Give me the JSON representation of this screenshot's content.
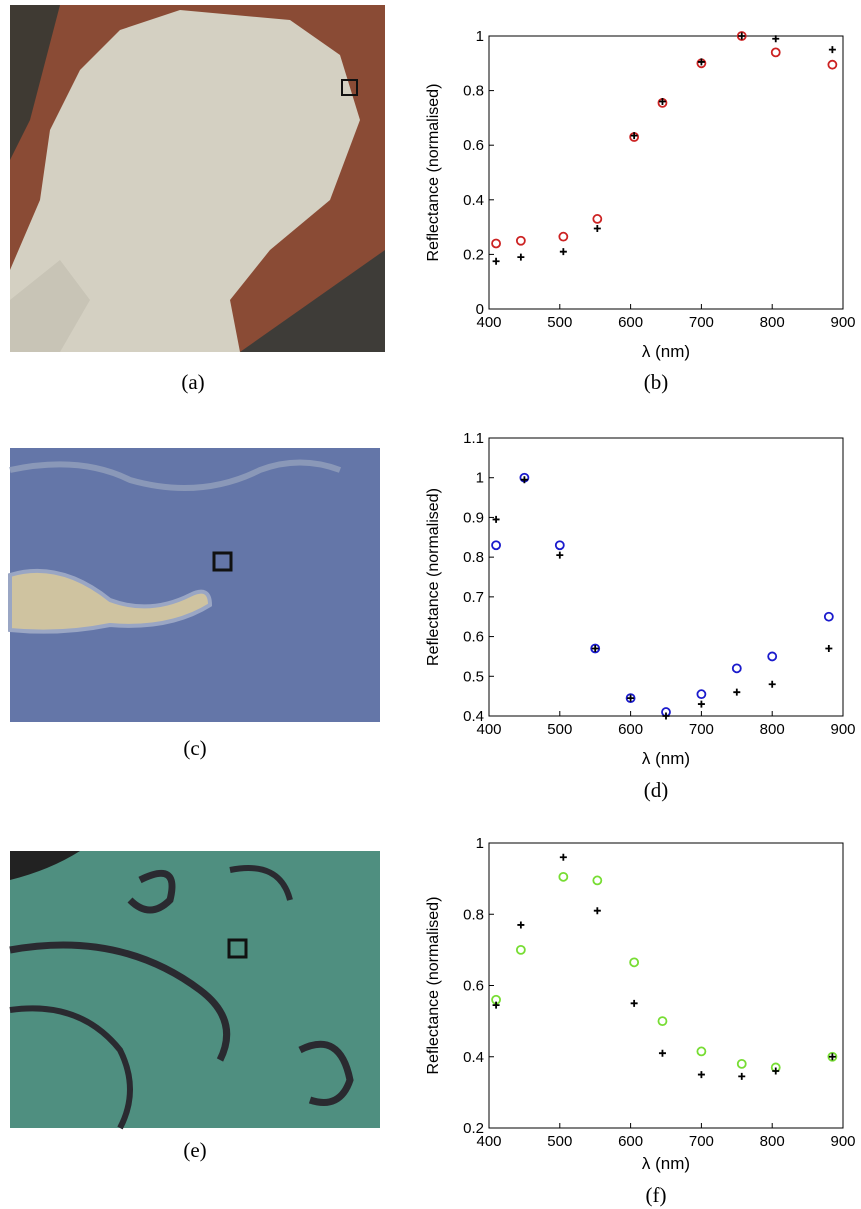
{
  "panels": [
    {
      "label": "(a)"
    },
    {
      "label": "(c)"
    },
    {
      "label": "(e)"
    }
  ],
  "chart_data": [
    {
      "type": "scatter",
      "caption": "(b)",
      "xlabel": "λ (nm)",
      "ylabel": "Reflectance (normalised)",
      "x": [
        410,
        445,
        505,
        553,
        605,
        645,
        700,
        757,
        805,
        885
      ],
      "series": [
        {
          "color": "#cc2222",
          "marker": "circle",
          "values": [
            0.24,
            0.25,
            0.265,
            0.33,
            0.63,
            0.755,
            0.9,
            1.0,
            0.94,
            0.895
          ]
        },
        {
          "color": "#000000",
          "marker": "plus",
          "values": [
            0.175,
            0.19,
            0.21,
            0.295,
            0.635,
            0.76,
            0.905,
            1.0,
            0.99,
            0.95
          ]
        }
      ],
      "xlim": [
        400,
        900
      ],
      "ylim": [
        0,
        1
      ],
      "xticks": [
        400,
        500,
        600,
        700,
        800,
        900
      ],
      "yticks": [
        0,
        0.2,
        0.4,
        0.6,
        0.8,
        1
      ]
    },
    {
      "type": "scatter",
      "caption": "(d)",
      "xlabel": "λ (nm)",
      "ylabel": "Reflectance (normalised)",
      "x": [
        410,
        450,
        500,
        550,
        600,
        650,
        700,
        750,
        800,
        880
      ],
      "series": [
        {
          "color": "#1a1acc",
          "marker": "circle",
          "values": [
            0.83,
            1.0,
            0.83,
            0.57,
            0.445,
            0.41,
            0.455,
            0.52,
            0.55,
            0.65
          ]
        },
        {
          "color": "#000000",
          "marker": "plus",
          "values": [
            0.895,
            0.995,
            0.805,
            0.57,
            0.445,
            0.4,
            0.43,
            0.46,
            0.48,
            0.57
          ]
        }
      ],
      "xlim": [
        400,
        900
      ],
      "ylim": [
        0.4,
        1.1
      ],
      "xticks": [
        400,
        500,
        600,
        700,
        800,
        900
      ],
      "yticks": [
        0.4,
        0.5,
        0.6,
        0.7,
        0.8,
        0.9,
        1,
        1.1
      ]
    },
    {
      "type": "scatter",
      "caption": "(f)",
      "xlabel": "λ (nm)",
      "ylabel": "Reflectance (normalised)",
      "x": [
        410,
        445,
        505,
        553,
        605,
        645,
        700,
        757,
        805,
        885
      ],
      "series": [
        {
          "color": "#77dd33",
          "marker": "circle",
          "values": [
            0.56,
            0.7,
            0.905,
            0.895,
            0.665,
            0.5,
            0.415,
            0.38,
            0.37,
            0.4
          ]
        },
        {
          "color": "#000000",
          "marker": "plus",
          "values": [
            0.545,
            0.77,
            0.96,
            0.81,
            0.55,
            0.41,
            0.35,
            0.345,
            0.36,
            0.4
          ]
        }
      ],
      "xlim": [
        400,
        900
      ],
      "ylim": [
        0.2,
        1
      ],
      "xticks": [
        400,
        500,
        600,
        700,
        800,
        900
      ],
      "yticks": [
        0.2,
        0.4,
        0.6,
        0.8,
        1
      ]
    }
  ]
}
